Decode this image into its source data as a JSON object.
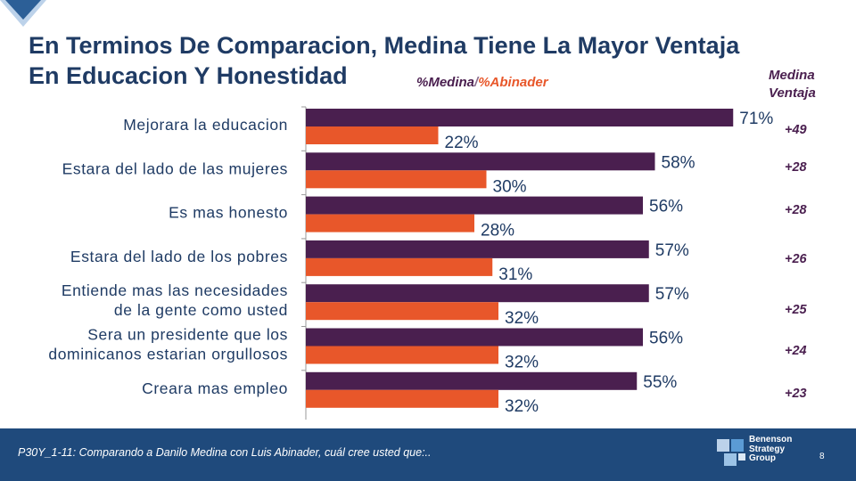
{
  "title_line1": "En Terminos De Comparacion, Medina Tiene La Mayor Ventaja",
  "title_line2": "En Educacion Y Honestidad",
  "legend": {
    "medina": "%Medina",
    "sep": "/",
    "abinader": "%Abinader"
  },
  "advantage_header": {
    "line1": "Medina",
    "line2": "Ventaja"
  },
  "colors": {
    "medina": "#4a1f4f",
    "abinader": "#e8572a",
    "title": "#1f3b64",
    "footer": "#1f4a7c"
  },
  "chart_data": {
    "type": "bar",
    "orientation": "horizontal",
    "categories": [
      [
        "Mejorara la educacion"
      ],
      [
        "Estara del lado de las mujeres"
      ],
      [
        "Es mas honesto"
      ],
      [
        "Estara del lado de los pobres"
      ],
      [
        "Entiende mas las necesidades",
        "de la gente como usted"
      ],
      [
        "Sera un presidente que los",
        "dominicanos estarian orgullosos"
      ],
      [
        "Creara mas empleo"
      ]
    ],
    "series": [
      {
        "name": "%Medina",
        "values": [
          71,
          58,
          56,
          57,
          57,
          56,
          55
        ],
        "labels": [
          "71%",
          "58%",
          "56%",
          "57%",
          "57%",
          "56%",
          "55%"
        ]
      },
      {
        "name": "%Abinader",
        "values": [
          22,
          30,
          28,
          31,
          32,
          32,
          32
        ],
        "labels": [
          "22%",
          "30%",
          "28%",
          "31%",
          "32%",
          "32%",
          "32%"
        ]
      }
    ],
    "advantage": [
      "+49",
      "+28",
      "+28",
      "+26",
      "+25",
      "+24",
      "+23"
    ],
    "xlim": [
      0,
      72
    ]
  },
  "footer": {
    "note": "P30Y_1-11: Comparando a Danilo Medina con Luis Abinader, cuál cree usted que:..",
    "page": "8",
    "brand": [
      "Benenson",
      "Strategy",
      "Group"
    ]
  }
}
